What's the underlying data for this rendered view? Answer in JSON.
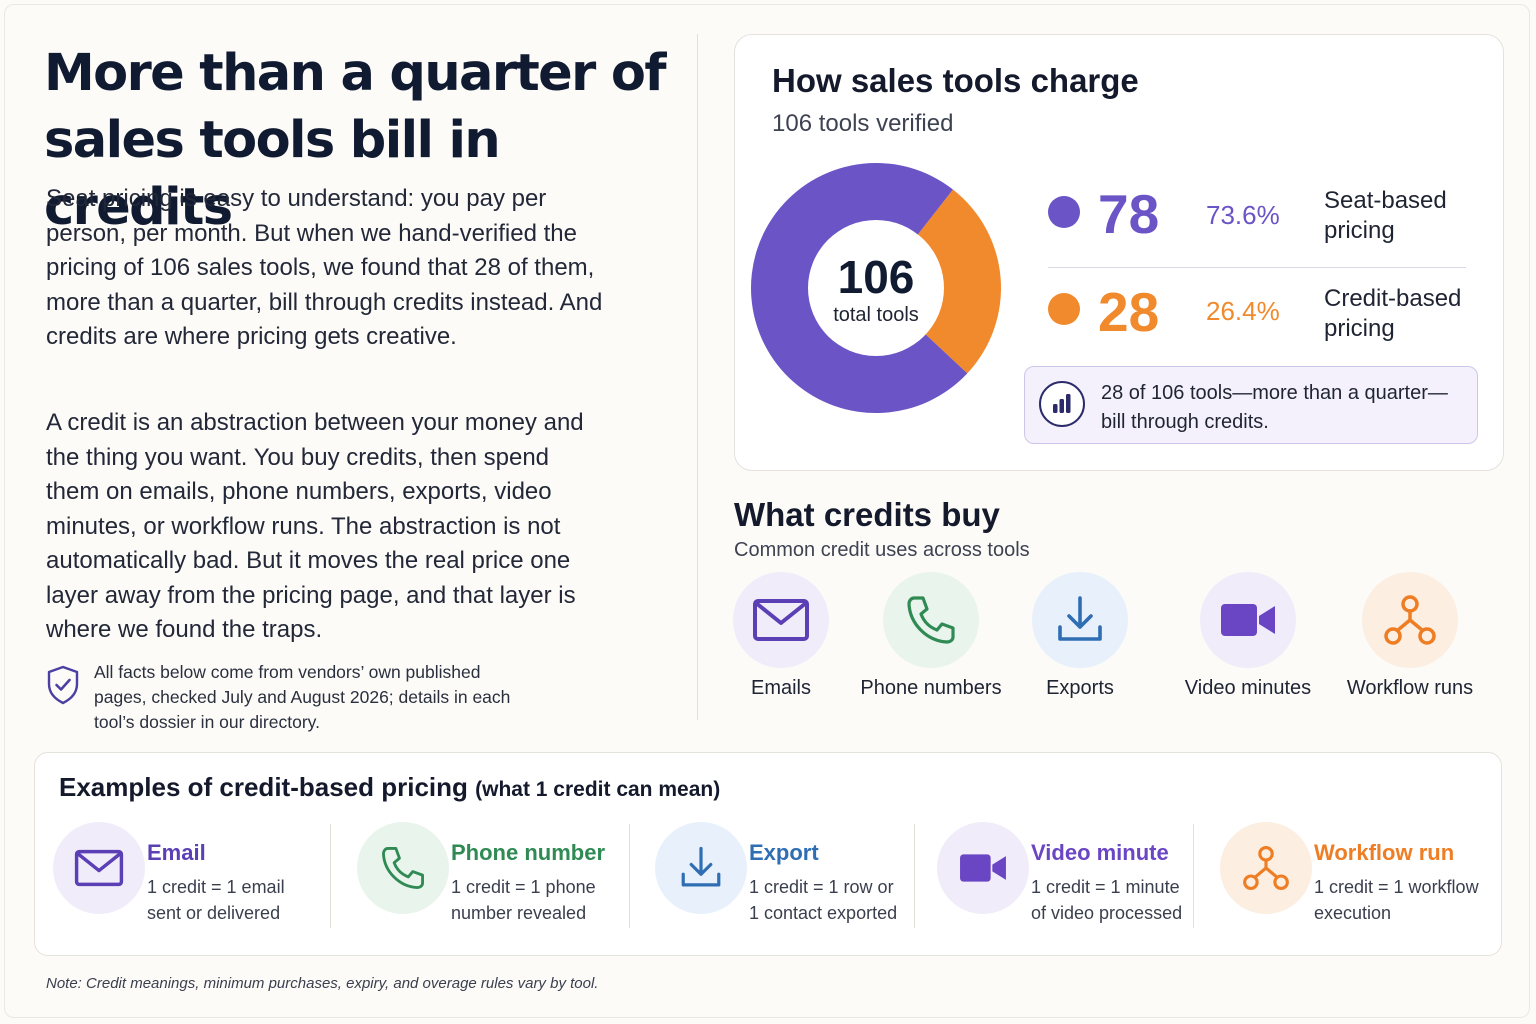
{
  "headline": "More than a quarter of sales tools bill in credits",
  "intro": {
    "paragraph_1": "Seat pricing is easy to understand: you pay per person, per month. But when we hand-verified the pricing of 106 sales tools, we found that 28 of them, more than a quarter, bill through credits instead. And credits are where pricing gets creative.",
    "paragraph_2": "A credit is an abstraction between your money and the thing you want. You buy credits, then spend them on emails, phone numbers, exports, video minutes, or workflow runs. The abstraction is not automatically bad. But it moves the real price one layer away from the pricing page, and that layer is where we found the traps.",
    "facts_note": "All facts below come from vendors’ own published pages, checked July and August 2026; details in each tool’s dossier in our directory.",
    "facts_icon": "shield-check-icon"
  },
  "chart_data": {
    "type": "pie",
    "title": "How sales tools charge",
    "subtitle": "106 tools verified",
    "center_value": "106",
    "center_label": "total tools",
    "slices": [
      {
        "name": "Seat-based pricing",
        "value": 78,
        "percent": "73.6%",
        "color": "#6b54c6"
      },
      {
        "name": "Credit-based pricing",
        "value": 28,
        "percent": "26.4%",
        "color": "#f08a2c"
      }
    ],
    "callout": "28 of 106 tools—more than a quarter—bill through credits.",
    "callout_icon": "bar-chart-icon"
  },
  "credit_uses": {
    "title": "What credits buy",
    "subtitle": "Common credit uses across tools",
    "items": [
      {
        "label": "Emails",
        "icon": "envelope-icon",
        "color": "#5b3fb5",
        "bg": "#f1ecfa"
      },
      {
        "label": "Phone numbers",
        "icon": "phone-icon",
        "color": "#2f8a53",
        "bg": "#e9f4ec"
      },
      {
        "label": "Exports",
        "icon": "download-icon",
        "color": "#2f6eb3",
        "bg": "#e8f1fb"
      },
      {
        "label": "Video minutes",
        "icon": "video-camera-icon",
        "color": "#6a45c4",
        "bg": "#f1ecfa"
      },
      {
        "label": "Workflow runs",
        "icon": "workflow-icon",
        "color": "#ee7d24",
        "bg": "#fdeee2"
      }
    ]
  },
  "examples": {
    "title": "Examples of credit-based pricing",
    "title_note": "(what 1 credit can mean)",
    "items": [
      {
        "name": "Email",
        "desc": "1 credit = 1 email sent or delivered",
        "icon": "envelope-icon",
        "color": "#5b3fb5",
        "bg": "#f1ecfa"
      },
      {
        "name": "Phone number",
        "desc": "1 credit = 1 phone number revealed",
        "icon": "phone-icon",
        "color": "#2f8a53",
        "bg": "#e9f4ec"
      },
      {
        "name": "Export",
        "desc": "1 credit = 1 row or 1 contact exported",
        "icon": "download-icon",
        "color": "#2f6eb3",
        "bg": "#e8f1fb"
      },
      {
        "name": "Video minute",
        "desc": "1 credit = 1 minute of video processed",
        "icon": "video-camera-icon",
        "color": "#6a45c4",
        "bg": "#f1ecfa"
      },
      {
        "name": "Workflow run",
        "desc": "1 credit = 1 workflow execution",
        "icon": "workflow-icon",
        "color": "#ee7d24",
        "bg": "#fdeee2"
      }
    ]
  },
  "footer_note": "Note: Credit meanings, minimum purchases, expiry, and overage rules vary by tool."
}
